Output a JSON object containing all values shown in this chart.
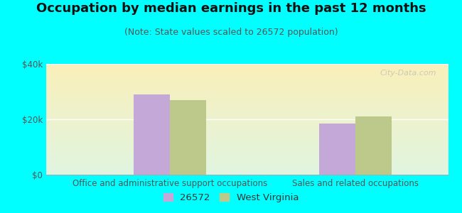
{
  "title": "Occupation by median earnings in the past 12 months",
  "subtitle": "(Note: State values scaled to 26572 population)",
  "background_color": "#00FFFF",
  "categories": [
    "Office and administrative support occupations",
    "Sales and related occupations"
  ],
  "series": {
    "26572": [
      29000,
      18500
    ],
    "West Virginia": [
      27000,
      21000
    ]
  },
  "bar_colors": {
    "26572": "#c4a8d8",
    "West Virginia": "#bdc98a"
  },
  "ylim": [
    0,
    40000
  ],
  "yticks": [
    0,
    20000,
    40000
  ],
  "ytick_labels": [
    "$0",
    "$20k",
    "$40k"
  ],
  "legend_labels": [
    "26572",
    "West Virginia"
  ],
  "bar_width": 0.35,
  "title_fontsize": 13,
  "subtitle_fontsize": 9,
  "axis_fontsize": 8.5,
  "legend_fontsize": 9.5,
  "watermark": "City-Data.com"
}
